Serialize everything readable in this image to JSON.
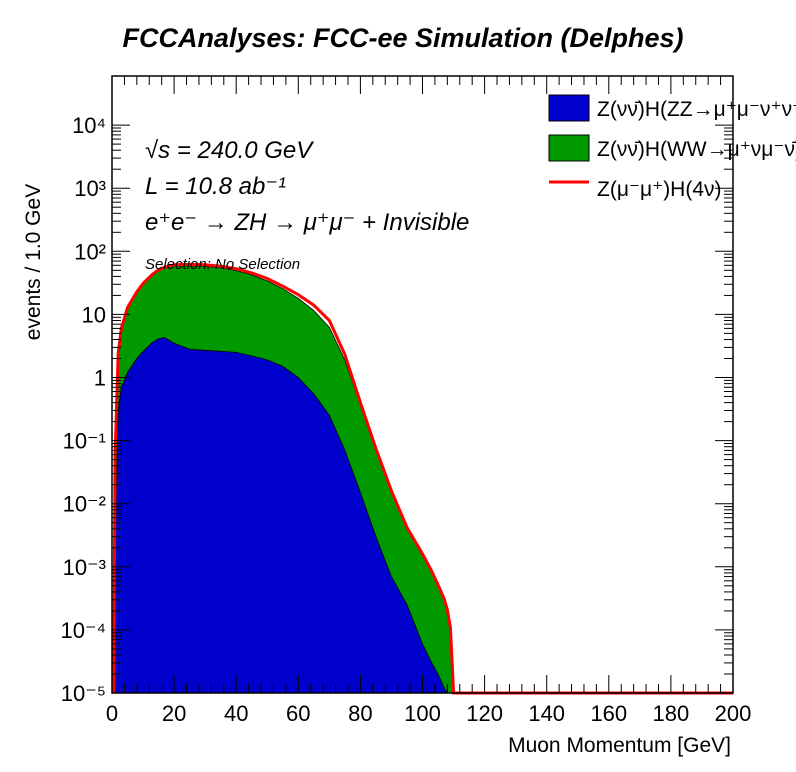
{
  "chart_data": {
    "type": "area",
    "title": "FCCAnalyses: FCC-ee Simulation (Delphes)",
    "xlabel": "Muon Momentum [GeV]",
    "ylabel": "events / 1.0 GeV",
    "xlim": [
      0,
      200
    ],
    "ylim": [
      1e-05,
      60000
    ],
    "yscale": "log",
    "stacked": true,
    "legend_position": "top-right",
    "annotations": {
      "energy": "√s = 240.0 GeV",
      "lumi": "L = 10.8 ab⁻¹",
      "process": "e⁺e⁻ → ZH → μ⁺μ⁻ + Invisible",
      "selection": "Selection: No Selection"
    },
    "x_ticks": [
      "0",
      "20",
      "40",
      "60",
      "80",
      "100",
      "120",
      "140",
      "160",
      "180",
      "200"
    ],
    "y_ticks": [
      "10⁻⁵",
      "10⁻⁴",
      "10⁻³",
      "10⁻²",
      "10⁻¹",
      "1",
      "10",
      "10²",
      "10³",
      "10⁴"
    ],
    "x": [
      0.5,
      1,
      2,
      3,
      5,
      8,
      10,
      13,
      15,
      17,
      20,
      25,
      30,
      35,
      40,
      45,
      50,
      55,
      60,
      65,
      70,
      75,
      80,
      85,
      90,
      95,
      100,
      103,
      105,
      107,
      108,
      109,
      110
    ],
    "series": [
      {
        "name": "Z(νν̄)H(ZZ→μ⁺μ⁻ν⁺ν⁻)",
        "color": "#0000cc",
        "style": "fill",
        "values": [
          1e-05,
          0.002,
          0.3,
          0.7,
          1.2,
          2.0,
          2.6,
          3.6,
          4.1,
          4.3,
          3.5,
          2.8,
          2.7,
          2.6,
          2.5,
          2.2,
          1.9,
          1.5,
          1.0,
          0.55,
          0.25,
          0.07,
          0.015,
          0.003,
          0.0007,
          0.00025,
          6e-05,
          3e-05,
          2e-05,
          1.2e-05,
          1e-05,
          1e-05,
          1e-05
        ]
      },
      {
        "name": "Z(νν̄)H(WW→μ⁺νμ⁻ν̄)",
        "color": "#009900",
        "style": "fill",
        "values": [
          1e-05,
          0.05,
          2.0,
          5.0,
          11.0,
          20.0,
          27.0,
          38.0,
          45.0,
          50.0,
          55.0,
          56.0,
          55.0,
          52.0,
          47.0,
          40.0,
          32.0,
          24.0,
          17.0,
          11.0,
          6.0,
          1.8,
          0.35,
          0.07,
          0.015,
          0.004,
          0.0015,
          0.0008,
          0.0005,
          0.0003,
          0.0002,
          0.0001,
          1e-05
        ]
      },
      {
        "name": "Z(μ⁻μ⁺)H(4ν)",
        "color": "#ff0000",
        "style": "line",
        "values": [
          1e-05,
          0.06,
          2.4,
          6.0,
          12.8,
          22.8,
          31.0,
          43.0,
          51.0,
          56.0,
          61.0,
          62.0,
          61.0,
          58.0,
          53.0,
          45.5,
          37.0,
          28.0,
          20.5,
          14.0,
          8.0,
          2.3,
          0.4,
          0.075,
          0.016,
          0.0042,
          0.0016,
          0.00085,
          0.00052,
          0.00031,
          0.00021,
          0.00011,
          1e-05
        ]
      }
    ]
  }
}
